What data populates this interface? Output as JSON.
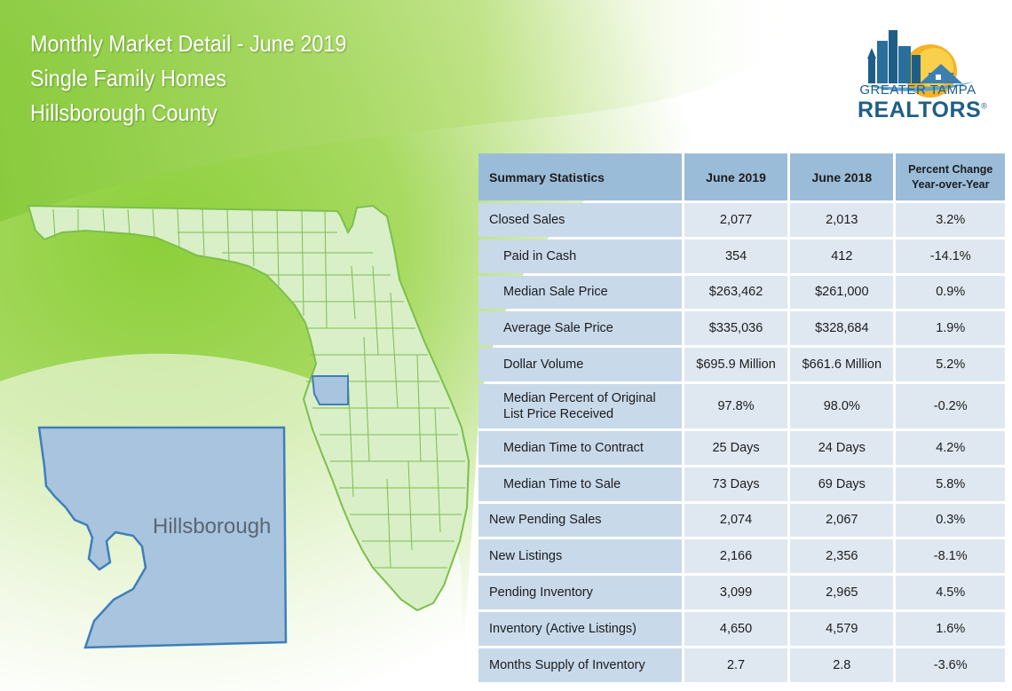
{
  "header": {
    "line1": "Monthly Market Detail - June 2019",
    "line2": "Single Family Homes",
    "line3": "Hillsborough County"
  },
  "logo": {
    "line1": "GREATER TAMPA",
    "line2": "REALTORS",
    "mark": "®",
    "icon": "city-skyline-sun-house-icon"
  },
  "map": {
    "county_label": "Hillsborough",
    "colors": {
      "state_fill": "#d9efc8",
      "state_border": "#7cbf4a",
      "county_fill": "#a8c4de",
      "county_border": "#3f7fb8"
    }
  },
  "table": {
    "headers": [
      "Summary Statistics",
      "June 2019",
      "June 2018",
      "Percent Change",
      "Year-over-Year"
    ],
    "rows": [
      {
        "label": "Closed Sales",
        "v2019": "2,077",
        "v2018": "2,013",
        "change": "3.2%"
      },
      {
        "label": "Paid in Cash",
        "v2019": "354",
        "v2018": "412",
        "change": "-14.1%"
      },
      {
        "label": "Median Sale Price",
        "v2019": "$263,462",
        "v2018": "$261,000",
        "change": "0.9%"
      },
      {
        "label": "Average Sale Price",
        "v2019": "$335,036",
        "v2018": "$328,684",
        "change": "1.9%"
      },
      {
        "label": "Dollar Volume",
        "v2019": "$695.9 Million",
        "v2018": "$661.6 Million",
        "change": "5.2%"
      },
      {
        "label": "Median Percent of Original",
        "label2": "List Price Received",
        "v2019": "97.8%",
        "v2018": "98.0%",
        "change": "-0.2%"
      },
      {
        "label": "Median Time to Contract",
        "v2019": "25 Days",
        "v2018": "24 Days",
        "change": "4.2%"
      },
      {
        "label": "Median Time to Sale",
        "v2019": "73 Days",
        "v2018": "69 Days",
        "change": "5.8%"
      },
      {
        "label": "New Pending Sales",
        "v2019": "2,074",
        "v2018": "2,067",
        "change": "0.3%"
      },
      {
        "label": "New Listings",
        "v2019": "2,166",
        "v2018": "2,356",
        "change": "-8.1%"
      },
      {
        "label": "Pending Inventory",
        "v2019": "3,099",
        "v2018": "2,965",
        "change": "4.5%"
      },
      {
        "label": "Inventory (Active Listings)",
        "v2019": "4,650",
        "v2018": "4,579",
        "change": "1.6%"
      },
      {
        "label": "Months Supply of Inventory",
        "v2019": "2.7",
        "v2018": "2.8",
        "change": "-3.6%"
      }
    ]
  }
}
